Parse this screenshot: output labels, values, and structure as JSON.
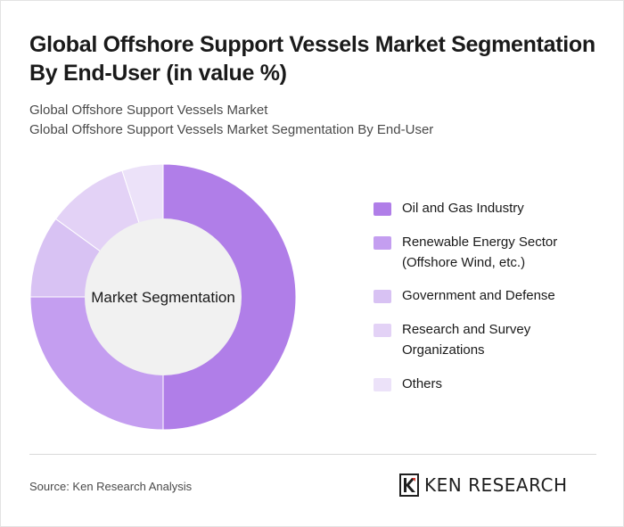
{
  "header": {
    "title": "Global Offshore Support Vessels Market Segmentation By End-User (in value %)",
    "subtitle_line1": "Global Offshore Support Vessels Market",
    "subtitle_line2": "Global Offshore Support Vessels Market Segmentation By End-User"
  },
  "chart_data": {
    "type": "pie",
    "center_label": "Market Segmentation",
    "categories": [
      "Oil and Gas Industry",
      "Renewable Energy Sector (Offshore Wind, etc.)",
      "Government and Defense",
      "Research and Survey Organizations",
      "Others"
    ],
    "values": [
      50,
      25,
      10,
      10,
      5
    ],
    "colors": [
      "#b07ee8",
      "#c49ef0",
      "#d8c2f3",
      "#e3d2f6",
      "#ece2f9"
    ],
    "legend_position": "right"
  },
  "footer": {
    "source": "Source: Ken Research Analysis",
    "brand": "KEN RESEARCH"
  }
}
